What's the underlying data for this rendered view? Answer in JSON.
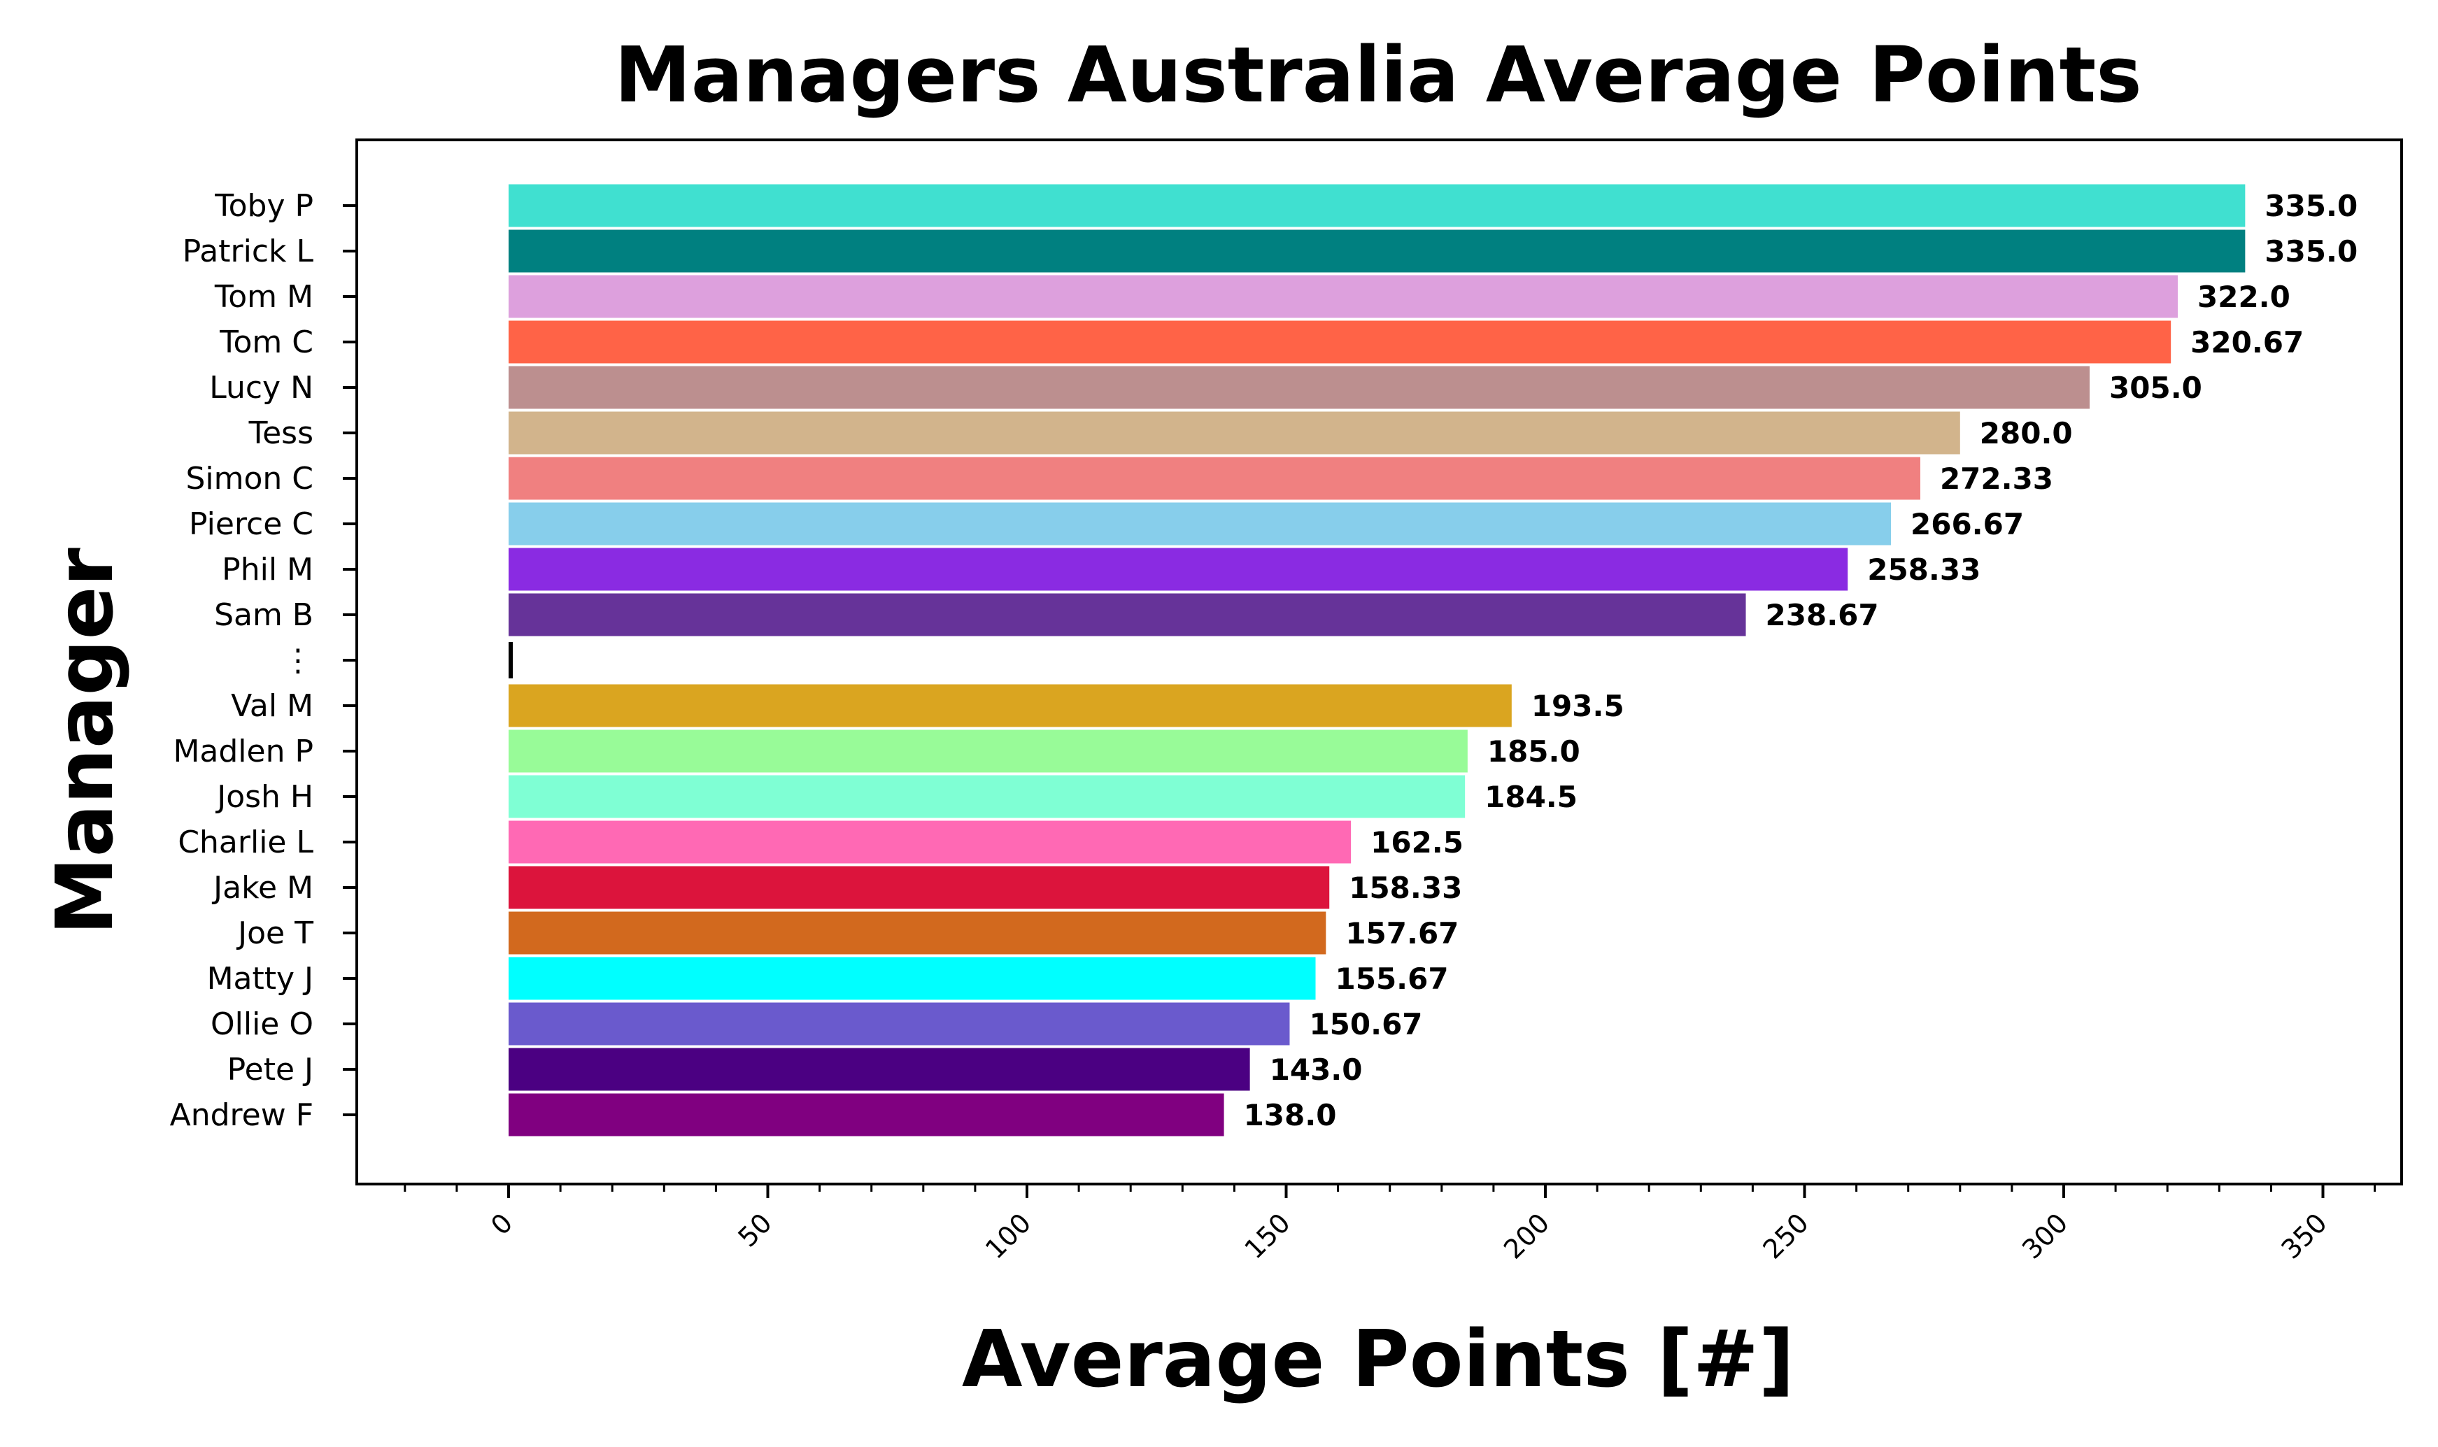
{
  "chart_data": {
    "type": "bar",
    "orientation": "horizontal",
    "title": "Managers Australia Average Points",
    "xlabel": "Average Points [#]",
    "ylabel": "Manager",
    "xlim": [
      -30,
      365
    ],
    "xticks": [
      "0",
      "50",
      "100",
      "150",
      "200",
      "250",
      "300",
      "350"
    ],
    "grid": false,
    "categories": [
      "Toby P",
      "Patrick L",
      "Tom M",
      "Tom C",
      "Lucy N",
      "Tess",
      "Simon C",
      "Pierce C",
      "Phil M",
      "Sam B",
      "⋮",
      "Val M",
      "Madlen P",
      "Josh H",
      "Charlie L",
      "Jake M",
      "Joe T",
      "Matty J",
      "Ollie O",
      "Pete J",
      "Andrew F"
    ],
    "values": [
      335.0,
      335.0,
      322.0,
      320.67,
      305.0,
      280.0,
      272.33,
      266.67,
      258.33,
      238.67,
      1.0,
      193.5,
      185.0,
      184.5,
      162.5,
      158.33,
      157.67,
      155.67,
      150.67,
      143.0,
      138.0
    ],
    "value_labels": [
      "335.0",
      "335.0",
      "322.0",
      "320.67",
      "305.0",
      "280.0",
      "272.33",
      "266.67",
      "258.33",
      "238.67",
      "",
      "193.5",
      "185.0",
      "184.5",
      "162.5",
      "158.33",
      "157.67",
      "155.67",
      "150.67",
      "143.0",
      "138.0"
    ],
    "colors": [
      "#40E0D0",
      "#008080",
      "#DDA0DD",
      "#FF6347",
      "#BC8F8F",
      "#D2B48C",
      "#F08080",
      "#87CEEB",
      "#8A2BE2",
      "#663399",
      "#000000",
      "#DAA520",
      "#98FB98",
      "#7FFFD4",
      "#FF69B4",
      "#DC143C",
      "#D2691E",
      "#00FFFF",
      "#6A5ACD",
      "#4B0082",
      "#800080"
    ]
  }
}
